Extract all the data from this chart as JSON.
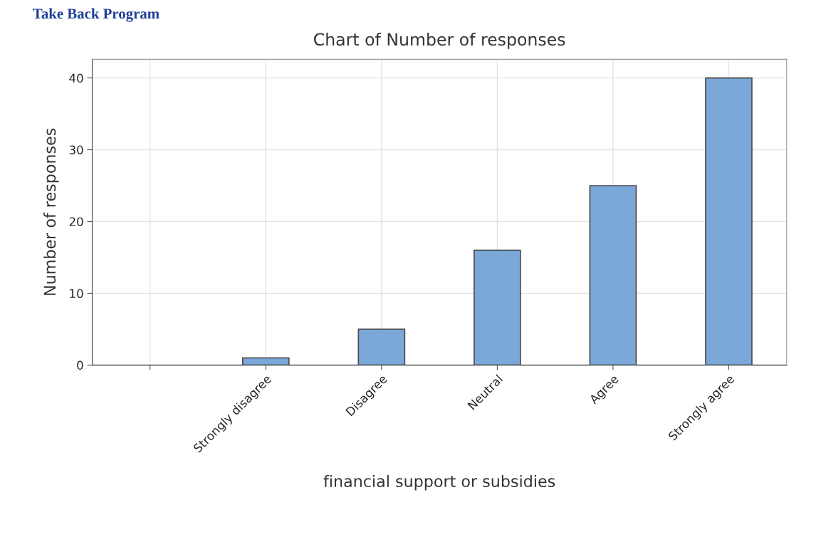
{
  "chart_data": {
    "type": "bar",
    "title": "Chart of Number of responses",
    "xlabel": "financial support or subsidies",
    "ylabel": "Number of responses",
    "categories": [
      null,
      "Strongly disagree",
      "Disagree",
      "Neutral",
      "Agree",
      "Strongly agree"
    ],
    "values": [
      null,
      1,
      5,
      16,
      25,
      40
    ],
    "color": "#7ba7d9",
    "ylim": [
      0,
      42.6
    ],
    "yticks": [
      0,
      10,
      20,
      30,
      40
    ],
    "grid": true,
    "annotations": [
      "Take Back Program"
    ]
  }
}
